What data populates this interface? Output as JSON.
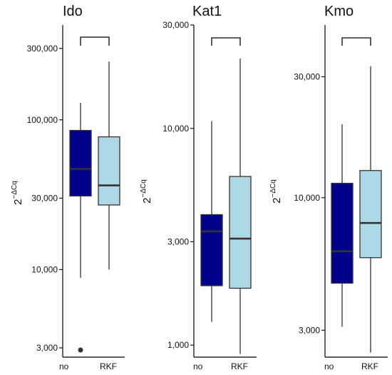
{
  "colors": {
    "no": "#00008b",
    "RKF": "#add8e6",
    "line": "#333333",
    "axis": "#000000"
  },
  "chart_data": [
    {
      "type": "box",
      "title": "Ido",
      "ylabel_base": "2",
      "ylabel_exp": "−ΔCq",
      "yscale": "log",
      "ylim": [
        2600,
        430000
      ],
      "yticks": [
        3000,
        10000,
        30000,
        100000,
        300000
      ],
      "ytick_labels": [
        "3,000",
        "10,000",
        "30,000",
        "100,000",
        "300,000"
      ],
      "categories": [
        "no",
        "RKF"
      ],
      "boxes": [
        {
          "category": "no",
          "whisker_low": 8800,
          "q1": 31000,
          "median": 47000,
          "q3": 85000,
          "whisker_high": 130000,
          "outliers": [
            2900
          ]
        },
        {
          "category": "RKF",
          "whisker_low": 10000,
          "q1": 27000,
          "median": 36500,
          "q3": 77000,
          "whisker_high": 245000,
          "outliers": []
        }
      ]
    },
    {
      "type": "box",
      "title": "Kat1",
      "ylabel_base": "2",
      "ylabel_exp": "−ΔCq",
      "yscale": "log",
      "ylim": [
        880,
        30000
      ],
      "yticks": [
        1000,
        3000,
        10000,
        30000
      ],
      "ytick_labels": [
        "1,000",
        "3,000",
        "10,000",
        "30,000"
      ],
      "categories": [
        "no",
        "RKF"
      ],
      "boxes": [
        {
          "category": "no",
          "whisker_low": 1280,
          "q1": 1880,
          "median": 3350,
          "q3": 4000,
          "whisker_high": 10800,
          "outliers": []
        },
        {
          "category": "RKF",
          "whisker_low": 910,
          "q1": 1830,
          "median": 3100,
          "q3": 6000,
          "whisker_high": 21000,
          "outliers": []
        }
      ]
    },
    {
      "type": "box",
      "title": "Kmo",
      "ylabel_base": "2",
      "ylabel_exp": "−ΔCq",
      "yscale": "log",
      "ylim": [
        2350,
        48000
      ],
      "yticks": [
        3000,
        10000,
        30000
      ],
      "ytick_labels": [
        "3,000",
        "10,000",
        "30,000"
      ],
      "categories": [
        "no",
        "RKF"
      ],
      "boxes": [
        {
          "category": "no",
          "whisker_low": 3100,
          "q1": 4600,
          "median": 6150,
          "q3": 11400,
          "whisker_high": 19500,
          "outliers": []
        },
        {
          "category": "RKF",
          "whisker_low": 2450,
          "q1": 5800,
          "median": 7950,
          "q3": 12800,
          "whisker_high": 33000,
          "outliers": []
        }
      ]
    }
  ]
}
